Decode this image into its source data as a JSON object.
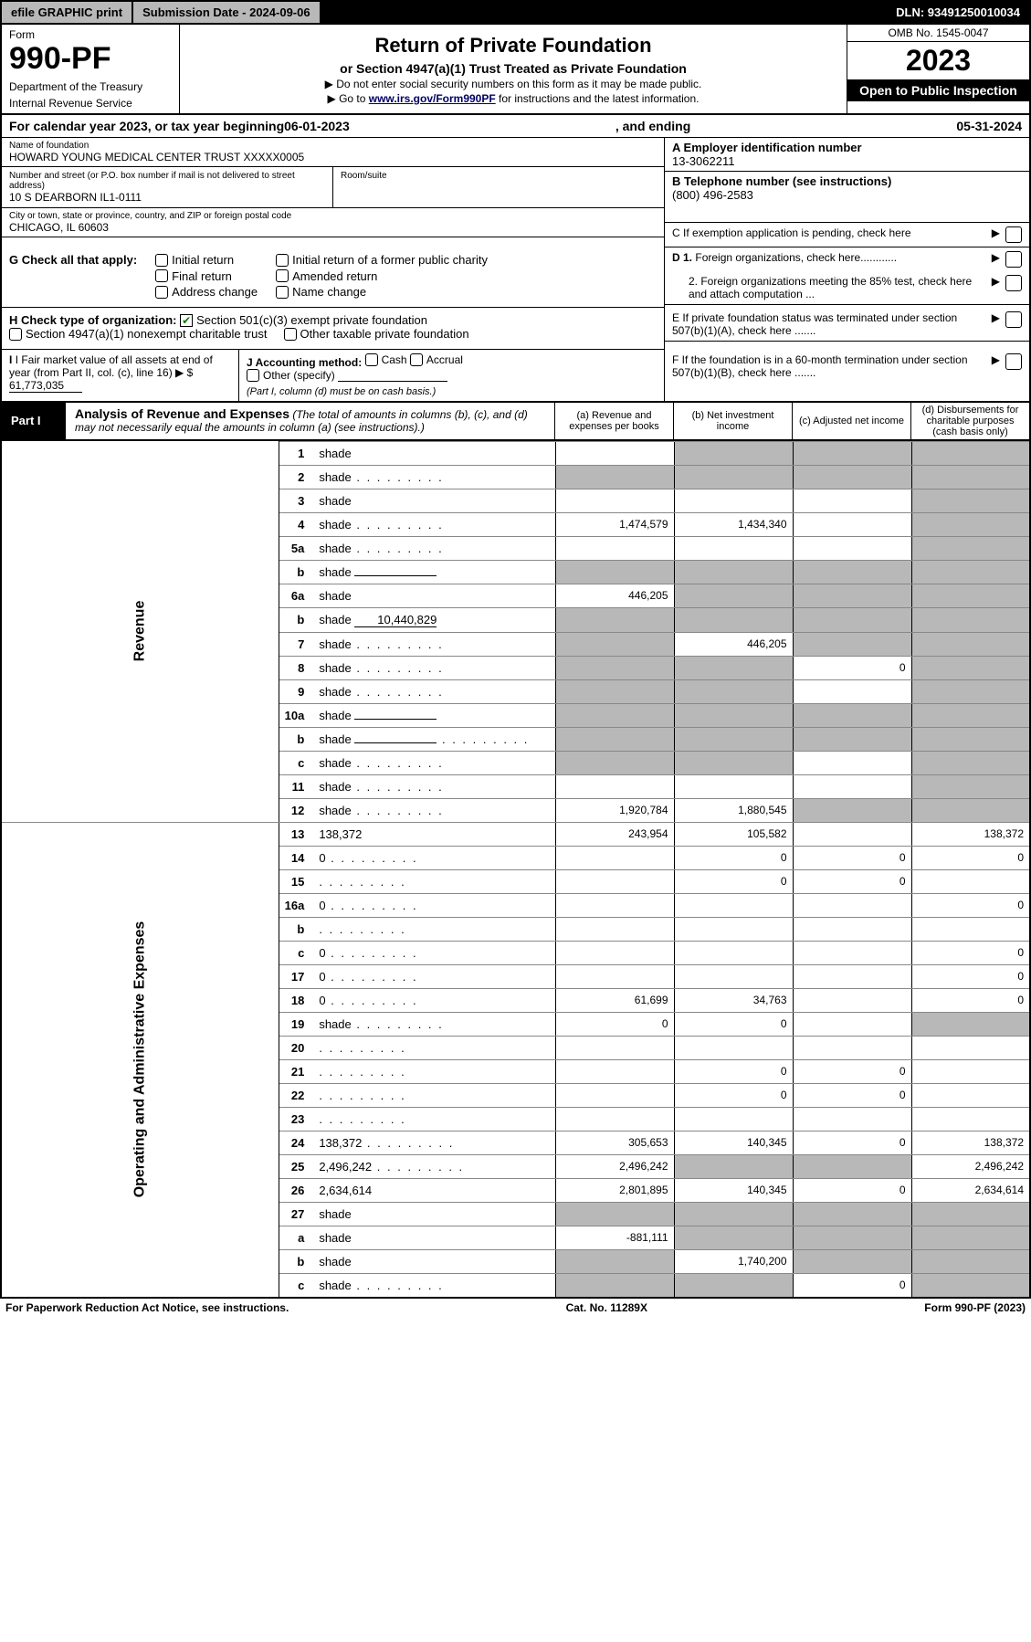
{
  "topbar": {
    "efile": "efile GRAPHIC print",
    "submission": "Submission Date - 2024-09-06",
    "dln": "DLN: 93491250010034"
  },
  "header": {
    "form_label": "Form",
    "form_number": "990-PF",
    "dept": "Department of the Treasury",
    "irs": "Internal Revenue Service",
    "title": "Return of Private Foundation",
    "subtitle": "or Section 4947(a)(1) Trust Treated as Private Foundation",
    "note1": "▶ Do not enter social security numbers on this form as it may be made public.",
    "note2_pre": "▶ Go to ",
    "note2_link": "www.irs.gov/Form990PF",
    "note2_post": " for instructions and the latest information.",
    "omb": "OMB No. 1545-0047",
    "year": "2023",
    "open": "Open to Public Inspection"
  },
  "calyear": {
    "pre": "For calendar year 2023, or tax year beginning ",
    "begin": "06-01-2023",
    "mid": " , and ending ",
    "end": "05-31-2024"
  },
  "info": {
    "name_label": "Name of foundation",
    "name": "HOWARD YOUNG MEDICAL CENTER TRUST XXXXX0005",
    "addr_label": "Number and street (or P.O. box number if mail is not delivered to street address)",
    "room_label": "Room/suite",
    "addr": "10 S DEARBORN IL1-0111",
    "city_label": "City or town, state or province, country, and ZIP or foreign postal code",
    "city": "CHICAGO, IL  60603",
    "ein_label": "A Employer identification number",
    "ein": "13-3062211",
    "phone_label": "B Telephone number (see instructions)",
    "phone": "(800) 496-2583",
    "c_label": "C If exemption application is pending, check here",
    "d1": "D 1. Foreign organizations, check here............",
    "d2": "2. Foreign organizations meeting the 85% test, check here and attach computation ...",
    "e": "E  If private foundation status was terminated under section 507(b)(1)(A), check here .......",
    "f": "F  If the foundation is in a 60-month termination under section 507(b)(1)(B), check here ......."
  },
  "g": {
    "label": "G Check all that apply:",
    "opts": [
      "Initial return",
      "Final return",
      "Address change",
      "Initial return of a former public charity",
      "Amended return",
      "Name change"
    ]
  },
  "h": {
    "label": "H Check type of organization:",
    "opt1": "Section 501(c)(3) exempt private foundation",
    "opt2": "Section 4947(a)(1) nonexempt charitable trust",
    "opt3": "Other taxable private foundation"
  },
  "i": {
    "label": "I Fair market value of all assets at end of year (from Part II, col. (c), line 16)",
    "val": "61,773,035"
  },
  "j": {
    "label": "J Accounting method:",
    "opts": [
      "Cash",
      "Accrual",
      "Other (specify)"
    ],
    "note": "(Part I, column (d) must be on cash basis.)"
  },
  "part1": {
    "label": "Part I",
    "title": "Analysis of Revenue and Expenses",
    "sub": " (The total of amounts in columns (b), (c), and (d) may not necessarily equal the amounts in column (a) (see instructions).)",
    "cols": {
      "a": "(a)   Revenue and expenses per books",
      "b": "(b)  Net investment income",
      "c": "(c)  Adjusted net income",
      "d": "(d)  Disbursements for charitable purposes (cash basis only)"
    }
  },
  "revenue_label": "Revenue",
  "expenses_label": "Operating and Administrative Expenses",
  "rows": [
    {
      "n": "1",
      "d": "shade",
      "a": "",
      "b": "shade",
      "c": "shade"
    },
    {
      "n": "2",
      "d": "shade",
      "a": "shade",
      "b": "shade",
      "c": "shade",
      "dots": true
    },
    {
      "n": "3",
      "d": "shade",
      "a": "",
      "b": "",
      "c": ""
    },
    {
      "n": "4",
      "d": "shade",
      "a": "1,474,579",
      "b": "1,434,340",
      "c": "",
      "dots": true
    },
    {
      "n": "5a",
      "d": "shade",
      "a": "",
      "b": "",
      "c": "",
      "dots": true
    },
    {
      "n": "b",
      "d": "shade",
      "a": "shade",
      "b": "shade",
      "c": "shade",
      "inline": true
    },
    {
      "n": "6a",
      "d": "shade",
      "a": "446,205",
      "b": "shade",
      "c": "shade"
    },
    {
      "n": "b",
      "d": "shade",
      "a": "shade",
      "b": "shade",
      "c": "shade",
      "inline": true,
      "ival": "10,440,829"
    },
    {
      "n": "7",
      "d": "shade",
      "a": "shade",
      "b": "446,205",
      "c": "shade",
      "dots": true
    },
    {
      "n": "8",
      "d": "shade",
      "a": "shade",
      "b": "shade",
      "c": "0",
      "dots": true
    },
    {
      "n": "9",
      "d": "shade",
      "a": "shade",
      "b": "shade",
      "c": "",
      "dots": true
    },
    {
      "n": "10a",
      "d": "shade",
      "a": "shade",
      "b": "shade",
      "c": "shade",
      "inline": true
    },
    {
      "n": "b",
      "d": "shade",
      "a": "shade",
      "b": "shade",
      "c": "shade",
      "inline": true,
      "dots": true
    },
    {
      "n": "c",
      "d": "shade",
      "a": "shade",
      "b": "shade",
      "c": "",
      "dots": true
    },
    {
      "n": "11",
      "d": "shade",
      "a": "",
      "b": "",
      "c": "",
      "dots": true
    },
    {
      "n": "12",
      "d": "shade",
      "a": "1,920,784",
      "b": "1,880,545",
      "c": "shade",
      "dots": true
    }
  ],
  "erows": [
    {
      "n": "13",
      "d": "138,372",
      "a": "243,954",
      "b": "105,582",
      "c": ""
    },
    {
      "n": "14",
      "d": "0",
      "a": "",
      "b": "0",
      "c": "0",
      "dots": true
    },
    {
      "n": "15",
      "d": "",
      "a": "",
      "b": "0",
      "c": "0",
      "dots": true
    },
    {
      "n": "16a",
      "d": "0",
      "a": "",
      "b": "",
      "c": "",
      "dots": true
    },
    {
      "n": "b",
      "d": "",
      "a": "",
      "b": "",
      "c": "",
      "dots": true
    },
    {
      "n": "c",
      "d": "0",
      "a": "",
      "b": "",
      "c": "",
      "dots": true
    },
    {
      "n": "17",
      "d": "0",
      "a": "",
      "b": "",
      "c": "",
      "dots": true
    },
    {
      "n": "18",
      "d": "0",
      "a": "61,699",
      "b": "34,763",
      "c": "",
      "dots": true
    },
    {
      "n": "19",
      "d": "shade",
      "a": "0",
      "b": "0",
      "c": "",
      "dots": true
    },
    {
      "n": "20",
      "d": "",
      "a": "",
      "b": "",
      "c": "",
      "dots": true
    },
    {
      "n": "21",
      "d": "",
      "a": "",
      "b": "0",
      "c": "0",
      "dots": true
    },
    {
      "n": "22",
      "d": "",
      "a": "",
      "b": "0",
      "c": "0",
      "dots": true
    },
    {
      "n": "23",
      "d": "",
      "a": "",
      "b": "",
      "c": "",
      "dots": true
    },
    {
      "n": "24",
      "d": "138,372",
      "a": "305,653",
      "b": "140,345",
      "c": "0",
      "dots": true
    },
    {
      "n": "25",
      "d": "2,496,242",
      "a": "2,496,242",
      "b": "shade",
      "c": "shade",
      "dots": true
    },
    {
      "n": "26",
      "d": "2,634,614",
      "a": "2,801,895",
      "b": "140,345",
      "c": "0"
    },
    {
      "n": "27",
      "d": "shade",
      "a": "shade",
      "b": "shade",
      "c": "shade"
    },
    {
      "n": "a",
      "d": "shade",
      "a": "-881,111",
      "b": "shade",
      "c": "shade"
    },
    {
      "n": "b",
      "d": "shade",
      "a": "shade",
      "b": "1,740,200",
      "c": "shade"
    },
    {
      "n": "c",
      "d": "shade",
      "a": "shade",
      "b": "shade",
      "c": "0",
      "dots": true
    }
  ],
  "footer": {
    "left": "For Paperwork Reduction Act Notice, see instructions.",
    "mid": "Cat. No. 11289X",
    "right": "Form 990-PF (2023)"
  }
}
